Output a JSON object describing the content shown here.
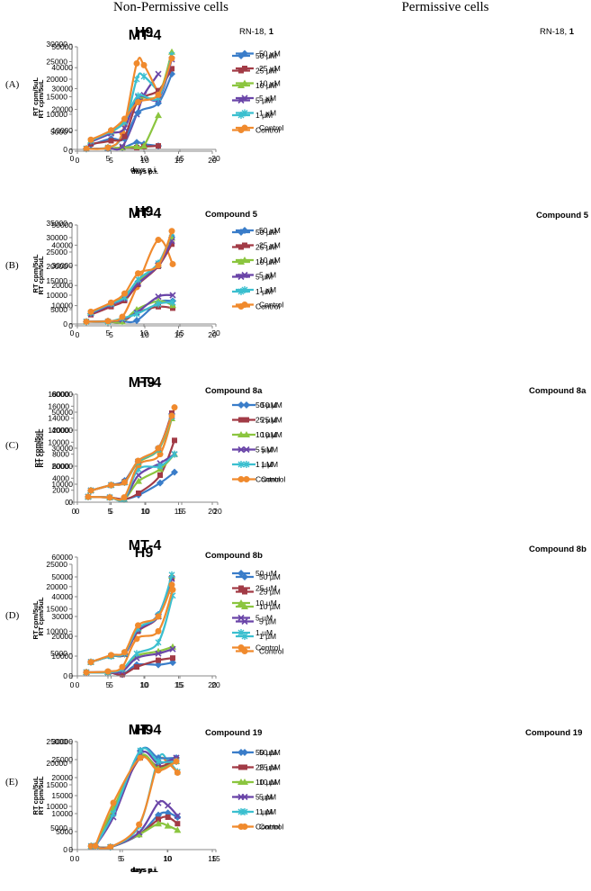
{
  "headers": {
    "left": "Non-Permissive cells",
    "right": "Permissive cells"
  },
  "colors": {
    "s50": "#3a7dc9",
    "s25": "#a23b46",
    "s10": "#8bc53f",
    "s5": "#6a45a8",
    "s1": "#3bbfcf",
    "control": "#f08a2d"
  },
  "rows": [
    {
      "label": "(A)",
      "compound_prefix": "RN-18,",
      "compound_num": "1"
    },
    {
      "label": "(B)",
      "compound_prefix": "Compound",
      "compound_num": "5"
    },
    {
      "label": "(C)",
      "compound_prefix": "Compound",
      "compound_num": "8a"
    },
    {
      "label": "(D)",
      "compound_prefix": "Compound",
      "compound_num": "8b"
    },
    {
      "label": "(E)",
      "compound_prefix": "Compound",
      "compound_num": "19"
    }
  ],
  "chart_data": [
    {
      "id": "A-H9",
      "type": "line",
      "title": "H9",
      "xlabel": "days p.i.",
      "ylabel": "RT cpm/5uL",
      "xlim": [
        0,
        20
      ],
      "xticks": [
        0,
        5,
        10,
        15,
        20
      ],
      "ylim": [
        0,
        30000
      ],
      "yticks": [
        0,
        5000,
        10000,
        15000,
        20000,
        25000,
        30000
      ],
      "x": [
        2,
        5,
        7,
        9,
        10,
        12
      ],
      "series": [
        {
          "name": "50 µM",
          "values": [
            200,
            300,
            500,
            2000,
            1500,
            1000
          ]
        },
        {
          "name": "25 µM",
          "values": [
            200,
            300,
            500,
            500,
            800,
            1000
          ]
        },
        {
          "name": "10 µM",
          "values": [
            200,
            300,
            500,
            800,
            1000,
            9700
          ]
        },
        {
          "name": "5 µM",
          "values": [
            200,
            300,
            800,
            10000,
            15500,
            21500
          ]
        },
        {
          "name": "1 µM",
          "values": [
            200,
            500,
            4000,
            20000,
            20800,
            16500
          ]
        },
        {
          "name": "Control",
          "values": [
            200,
            500,
            4700,
            24500,
            24000,
            16000
          ]
        }
      ]
    },
    {
      "id": "A-MT4",
      "type": "line",
      "title": "MT-4",
      "xlabel": "days p.i.",
      "ylabel": "RT cpm/5uL",
      "xlim": [
        0,
        20
      ],
      "xticks": [
        0,
        5,
        10,
        15,
        20
      ],
      "ylim": [
        0,
        50000
      ],
      "yticks": [
        0,
        10000,
        20000,
        30000,
        40000,
        50000
      ],
      "x": [
        2,
        5,
        7,
        9,
        12,
        14
      ],
      "series": [
        {
          "name": "50 µM",
          "values": [
            3000,
            6000,
            6000,
            18500,
            23000,
            37000
          ]
        },
        {
          "name": "25 µM",
          "values": [
            3500,
            5000,
            7000,
            24000,
            29000,
            39500
          ]
        },
        {
          "name": "10 µM",
          "values": [
            5000,
            9000,
            14500,
            25000,
            27000,
            47500
          ]
        },
        {
          "name": "5 µM",
          "values": [
            4500,
            8500,
            11000,
            26000,
            25000,
            44000
          ]
        },
        {
          "name": "1 µM",
          "values": [
            5000,
            9500,
            14000,
            26500,
            25500,
            46000
          ]
        },
        {
          "name": "Control",
          "values": [
            5500,
            10000,
            15500,
            23500,
            27000,
            44500
          ]
        }
      ]
    },
    {
      "id": "B-H9",
      "type": "line",
      "title": "H9",
      "xlabel": "",
      "ylabel": "RT cpm/5uL",
      "xlim": [
        0,
        20
      ],
      "xticks": [
        0,
        5,
        10,
        15,
        20
      ],
      "ylim": [
        0,
        35000
      ],
      "yticks": [
        0,
        5000,
        10000,
        15000,
        20000,
        25000,
        30000,
        35000
      ],
      "x": [
        2,
        5,
        7,
        9,
        12,
        14
      ],
      "series": [
        {
          "name": "50 µM",
          "values": [
            800,
            1000,
            900,
            1200,
            7500,
            8000
          ]
        },
        {
          "name": "25 µM",
          "values": [
            800,
            800,
            800,
            4000,
            6000,
            5500
          ]
        },
        {
          "name": "10 µM",
          "values": [
            800,
            800,
            800,
            5000,
            8000,
            6500
          ]
        },
        {
          "name": "5 µM",
          "values": [
            800,
            800,
            1500,
            4000,
            9500,
            10000
          ]
        },
        {
          "name": "1 µM",
          "values": [
            800,
            800,
            2000,
            3500,
            7000,
            7500
          ]
        },
        {
          "name": "Control",
          "values": [
            800,
            1000,
            2500,
            12800,
            29200,
            20800
          ]
        }
      ]
    },
    {
      "id": "B-MT4",
      "type": "line",
      "title": "MT-4",
      "xlabel": "",
      "ylabel": "RT cpm/5uL",
      "xlim": [
        0,
        20
      ],
      "xticks": [
        0,
        5,
        10,
        15,
        20
      ],
      "ylim": [
        0,
        50000
      ],
      "yticks": [
        0,
        10000,
        20000,
        30000,
        40000,
        50000
      ],
      "x": [
        2,
        5,
        7,
        9,
        12,
        14
      ],
      "series": [
        {
          "name": "50 µM",
          "values": [
            6000,
            11000,
            15000,
            22000,
            31000,
            44000
          ]
        },
        {
          "name": "25 µM",
          "values": [
            5500,
            9500,
            12500,
            20500,
            29500,
            40500
          ]
        },
        {
          "name": "10 µM",
          "values": [
            6500,
            11000,
            14500,
            22500,
            30000,
            43500
          ]
        },
        {
          "name": "5 µM",
          "values": [
            6000,
            10500,
            13500,
            21000,
            30000,
            42000
          ]
        },
        {
          "name": "1 µM",
          "values": [
            6500,
            11000,
            14000,
            23000,
            31000,
            46000
          ]
        },
        {
          "name": "Control",
          "values": [
            7000,
            11500,
            16000,
            26000,
            30000,
            47000
          ]
        }
      ]
    },
    {
      "id": "C-H9",
      "type": "line",
      "title": "H9",
      "xlabel": "",
      "ylabel": "RT cpm/5uL",
      "xlim": [
        0,
        20
      ],
      "xticks": [
        0,
        5,
        10,
        15,
        20
      ],
      "ylim": [
        0,
        18000
      ],
      "yticks": [
        0,
        2000,
        4000,
        6000,
        8000,
        10000,
        12000,
        14000,
        16000,
        18000
      ],
      "x": [
        2,
        5,
        7,
        9,
        12,
        14
      ],
      "series": [
        {
          "name": "50 µM",
          "values": [
            900,
            800,
            500,
            1200,
            3200,
            5000
          ]
        },
        {
          "name": "25 µM",
          "values": [
            900,
            800,
            500,
            1500,
            4500,
            10300
          ]
        },
        {
          "name": "10 µM",
          "values": [
            900,
            800,
            500,
            3500,
            5500,
            8000
          ]
        },
        {
          "name": "5 µM",
          "values": [
            900,
            800,
            500,
            4500,
            6500,
            8000
          ]
        },
        {
          "name": "1 µM",
          "values": [
            900,
            800,
            500,
            5500,
            6000,
            8000
          ]
        },
        {
          "name": "Control",
          "values": [
            900,
            800,
            800,
            6200,
            8000,
            15800
          ]
        }
      ]
    },
    {
      "id": "C-MT4",
      "type": "line",
      "title": "MT-4",
      "xlabel": "",
      "ylabel": "RT cpm/5uL",
      "xlim": [
        0,
        20
      ],
      "xticks": [
        0,
        5,
        10,
        15,
        20
      ],
      "ylim": [
        0,
        60000
      ],
      "yticks": [
        0,
        10000,
        20000,
        30000,
        40000,
        50000,
        60000
      ],
      "x": [
        2,
        5,
        7,
        9,
        12,
        14
      ],
      "series": [
        {
          "name": "50 µM",
          "values": [
            6500,
            9500,
            12000,
            22500,
            30000,
            49000
          ]
        },
        {
          "name": "25 µM",
          "values": [
            6500,
            9500,
            11500,
            22500,
            29500,
            49500
          ]
        },
        {
          "name": "10 µM",
          "values": [
            6500,
            9500,
            11000,
            22000,
            29000,
            46500
          ]
        },
        {
          "name": "5 µM",
          "values": [
            6500,
            9500,
            11000,
            22500,
            29500,
            48000
          ]
        },
        {
          "name": "1 µM",
          "values": [
            6500,
            9500,
            11000,
            22500,
            29500,
            47500
          ]
        },
        {
          "name": "Control",
          "values": [
            6500,
            9500,
            11000,
            23000,
            30000,
            48000
          ]
        }
      ]
    },
    {
      "id": "D-H9",
      "type": "line",
      "title": "H9",
      "xlabel": "",
      "ylabel": "RT cpm/5uL",
      "xlim": [
        0,
        20
      ],
      "xticks": [
        0,
        5,
        10,
        15,
        20
      ],
      "ylim": [
        0,
        25000
      ],
      "yticks": [
        0,
        5000,
        10000,
        15000,
        20000,
        25000
      ],
      "x": [
        2,
        5,
        7,
        9,
        12,
        14
      ],
      "series": [
        {
          "name": "50 µM",
          "values": [
            800,
            800,
            300,
            2500,
            2500,
            3000
          ]
        },
        {
          "name": "25 µM",
          "values": [
            800,
            800,
            300,
            2000,
            3500,
            4000
          ]
        },
        {
          "name": "10 µM",
          "values": [
            800,
            800,
            1500,
            4500,
            5500,
            6500
          ]
        },
        {
          "name": "5 µM",
          "values": [
            800,
            800,
            1000,
            4000,
            5000,
            6000
          ]
        },
        {
          "name": "1 µM",
          "values": [
            800,
            800,
            1500,
            5000,
            7500,
            18000
          ]
        },
        {
          "name": "Control",
          "values": [
            800,
            1000,
            2000,
            8300,
            10000,
            19300
          ]
        }
      ]
    },
    {
      "id": "D-MT4",
      "type": "line",
      "title": "MT-4",
      "xlabel": "",
      "ylabel": "RT cpm/5uL",
      "xlim": [
        0,
        20
      ],
      "xticks": [
        0,
        5,
        10,
        15,
        20
      ],
      "ylim": [
        0,
        60000
      ],
      "yticks": [
        0,
        10000,
        20000,
        30000,
        40000,
        50000,
        60000
      ],
      "x": [
        2,
        5,
        7,
        9,
        12,
        14
      ],
      "series": [
        {
          "name": "50 µM",
          "values": [
            7000,
            10000,
            11000,
            23000,
            31000,
            50000
          ]
        },
        {
          "name": "25 µM",
          "values": [
            7000,
            10000,
            11000,
            22500,
            30000,
            49500
          ]
        },
        {
          "name": "10 µM",
          "values": [
            7000,
            10000,
            11000,
            23500,
            30000,
            50500
          ]
        },
        {
          "name": "5 µM",
          "values": [
            7000,
            10000,
            11000,
            23000,
            30000,
            49000
          ]
        },
        {
          "name": "1 µM",
          "values": [
            7000,
            10000,
            11500,
            24000,
            30500,
            51000
          ]
        },
        {
          "name": "Control",
          "values": [
            7000,
            10500,
            12000,
            25500,
            30000,
            46000
          ]
        }
      ]
    },
    {
      "id": "E-H9",
      "type": "line",
      "title": "H9",
      "xlabel": "days p.i.",
      "ylabel": "RT cpm/5uL",
      "xlim": [
        0,
        15
      ],
      "xticks": [
        0,
        5,
        10,
        15
      ],
      "ylim": [
        0,
        25000
      ],
      "yticks": [
        0,
        5000,
        10000,
        15000,
        20000,
        25000
      ],
      "x": [
        2,
        4,
        7,
        9,
        10,
        11
      ],
      "series": [
        {
          "name": "50 µM",
          "values": [
            800,
            600,
            3500,
            8000,
            8500,
            7500
          ]
        },
        {
          "name": "25 µM",
          "values": [
            800,
            600,
            3500,
            7000,
            7500,
            6000
          ]
        },
        {
          "name": "10 µM",
          "values": [
            800,
            600,
            3500,
            6000,
            5500,
            4500
          ]
        },
        {
          "name": "5 µM",
          "values": [
            800,
            600,
            4000,
            10800,
            10200,
            7800
          ]
        },
        {
          "name": "1 µM",
          "values": [
            800,
            600,
            5500,
            21000,
            20500,
            18000
          ]
        },
        {
          "name": "Control",
          "values": [
            800,
            600,
            5800,
            20200,
            20000,
            17800
          ]
        }
      ]
    },
    {
      "id": "E-MT4",
      "type": "line",
      "title": "MT-4",
      "xlabel": "days p.i.",
      "ylabel": "RT cpm/5uL",
      "xlim": [
        0,
        15
      ],
      "xticks": [
        0,
        5,
        10,
        15
      ],
      "ylim": [
        0,
        30000
      ],
      "yticks": [
        0,
        5000,
        10000,
        15000,
        20000,
        25000,
        30000
      ],
      "x": [
        2,
        4,
        7,
        9,
        11
      ],
      "series": [
        {
          "name": "50 µM",
          "values": [
            1000,
            10000,
            27500,
            25500,
            25500
          ]
        },
        {
          "name": "25 µM",
          "values": [
            1000,
            11000,
            25500,
            23000,
            25000
          ]
        },
        {
          "name": "10 µM",
          "values": [
            1000,
            11500,
            26000,
            22500,
            24500
          ]
        },
        {
          "name": "5 µM",
          "values": [
            1000,
            9000,
            26500,
            24000,
            25500
          ]
        },
        {
          "name": "1 µM",
          "values": [
            1000,
            10000,
            27500,
            24500,
            24500
          ]
        },
        {
          "name": "Control",
          "values": [
            1000,
            13000,
            25500,
            22000,
            24500
          ]
        }
      ]
    }
  ]
}
